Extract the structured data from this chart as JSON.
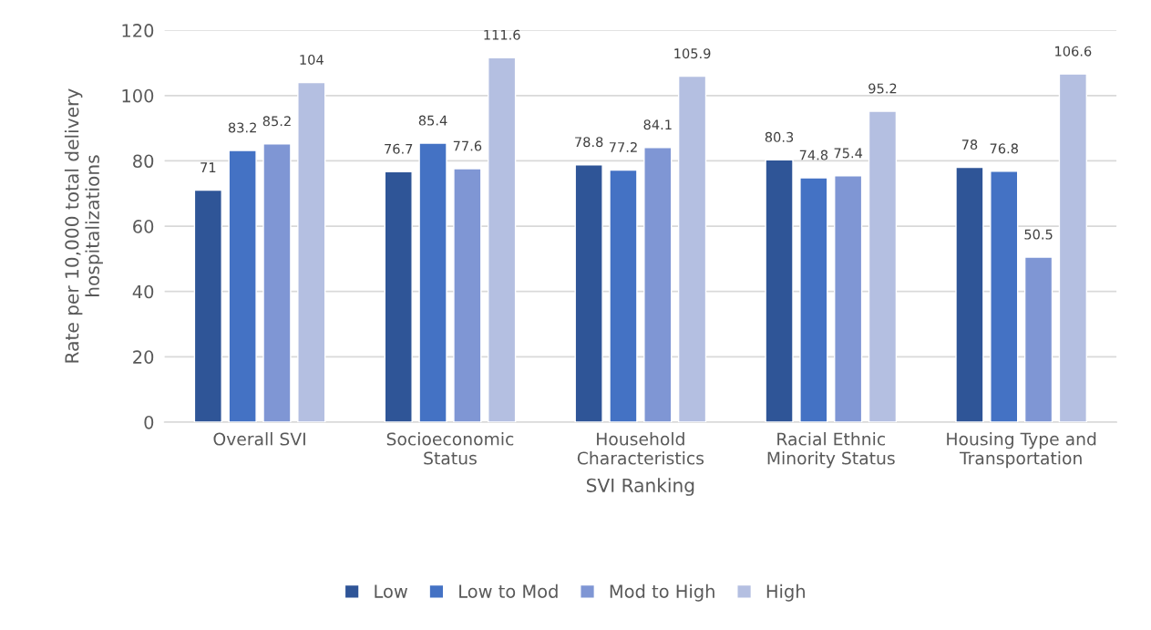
{
  "chart_data": {
    "type": "bar",
    "xlabel": "SVI Ranking",
    "ylabel": "Rate per 10,000 total delivery\nhospitalizations",
    "categories": [
      "Overall SVI",
      "Socioeconomic\nStatus",
      "Household\nCharacteristics",
      "Racial Ethnic\nMinority Status",
      "Housing Type and\nTransportation"
    ],
    "series": [
      {
        "name": "Low",
        "color": "#2f5597",
        "values": [
          71,
          76.7,
          78.8,
          80.3,
          78
        ]
      },
      {
        "name": "Low to Mod",
        "color": "#4472c4",
        "values": [
          83.2,
          85.4,
          77.2,
          74.8,
          76.8
        ]
      },
      {
        "name": "Mod to High",
        "color": "#7f96d4",
        "values": [
          85.2,
          77.6,
          84.1,
          75.4,
          50.5
        ]
      },
      {
        "name": "High",
        "color": "#b4bfe1",
        "values": [
          104,
          111.6,
          105.9,
          95.2,
          106.6
        ]
      }
    ],
    "ylim": [
      0,
      120
    ],
    "yticks": [
      0,
      20,
      40,
      60,
      80,
      100,
      120
    ],
    "grid": "y",
    "legend": "bottom",
    "data_labels": true
  }
}
